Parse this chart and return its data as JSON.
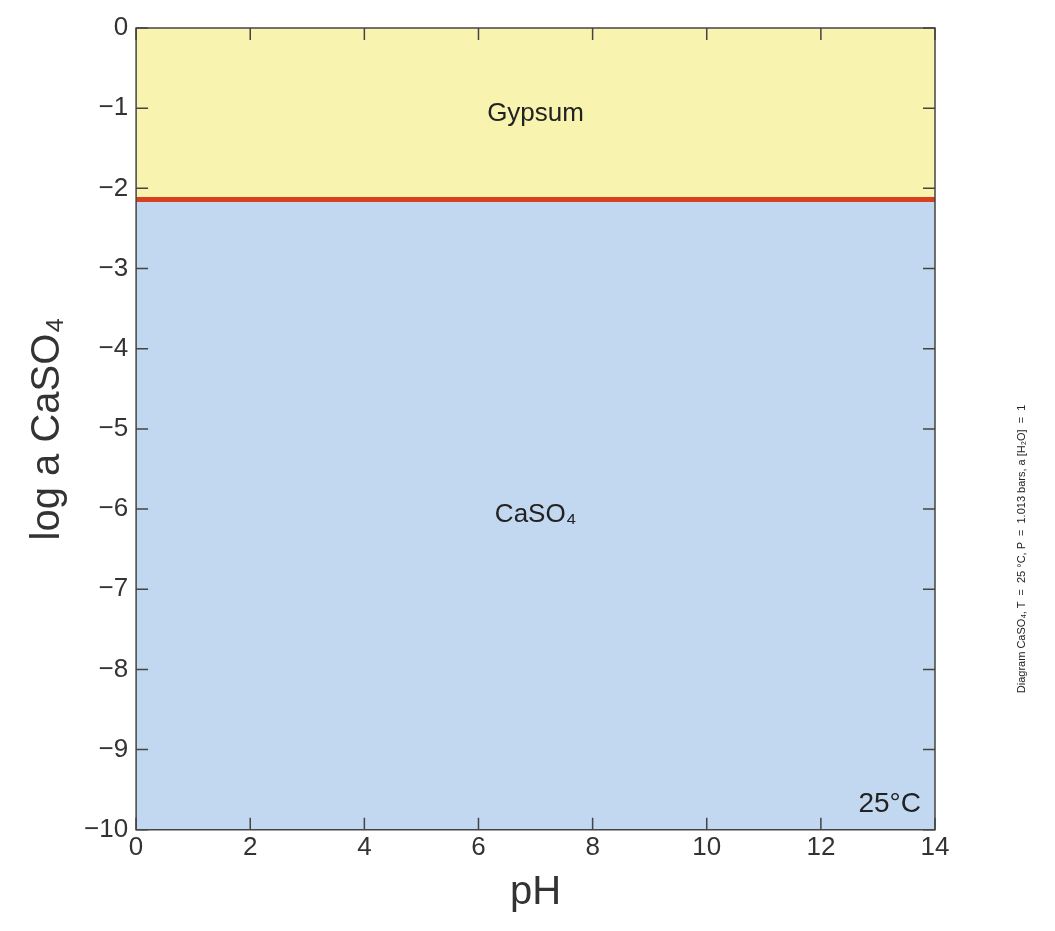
{
  "chart_data": {
    "type": "line",
    "xlabel": "pH",
    "ylabel": "log a CaSO₄",
    "x": [
      0,
      14
    ],
    "series": [
      {
        "color": "#d9401f",
        "values": [
          -2.14,
          -2.14
        ]
      }
    ],
    "bands": [
      {
        "axis": "y",
        "from": -2.14,
        "to": 0,
        "label": "Gypsum",
        "color": "#f8f4b0"
      },
      {
        "axis": "y",
        "from": -10,
        "to": -2.14,
        "label": "CaSO₄",
        "color": "#c2d8f0"
      }
    ],
    "annotations": [
      "25°C",
      "Diagram CaSO₄, T  =  25 °C, P  =  1.013 bars, a [H₂O]  =  1"
    ],
    "xlim": [
      0,
      14
    ],
    "ylim": [
      -10,
      0
    ],
    "xticks": [
      0,
      2,
      4,
      6,
      8,
      10,
      12,
      14
    ],
    "yticks": [
      0,
      -1,
      -2,
      -3,
      -4,
      -5,
      -6,
      -7,
      -8,
      -9,
      -10
    ],
    "grid": false,
    "legend": false,
    "marker": "none",
    "line_style": "solid"
  }
}
